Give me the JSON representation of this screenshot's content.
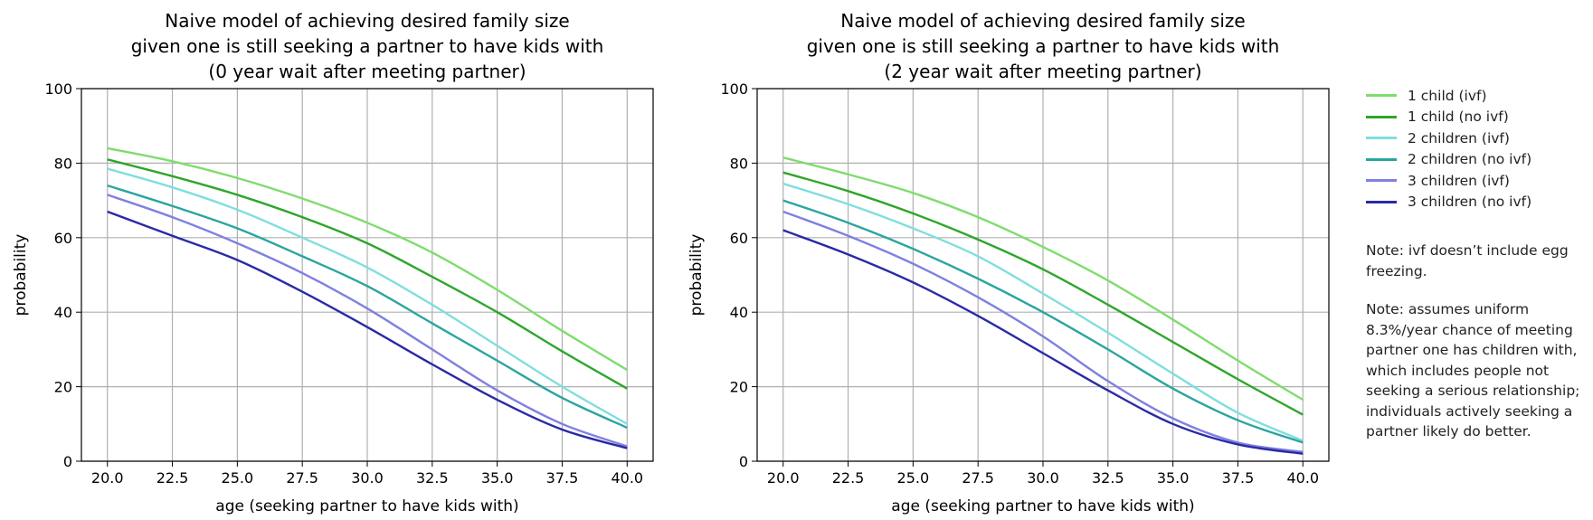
{
  "chart_data": [
    {
      "type": "line",
      "title_lines": [
        "Naive model of achieving desired family size",
        "given one is still seeking a partner to have kids with",
        "(0 year wait after meeting partner)"
      ],
      "xlabel": "age (seeking partner to have kids with)",
      "ylabel": "probability",
      "xlim": [
        19.0,
        41.0
      ],
      "ylim": [
        0,
        100
      ],
      "xticks": [
        "20.0",
        "22.5",
        "25.0",
        "27.5",
        "30.0",
        "32.5",
        "35.0",
        "37.5",
        "40.0"
      ],
      "yticks": [
        "0",
        "20",
        "40",
        "60",
        "80",
        "100"
      ],
      "grid": true,
      "x": [
        20,
        22.5,
        25,
        27.5,
        30,
        32.5,
        35,
        37.5,
        40
      ],
      "series": [
        {
          "name": "1 child (ivf)",
          "color": "#7fdc6e",
          "values": [
            84,
            80.5,
            76,
            70.5,
            64,
            56,
            46,
            35,
            24.5
          ]
        },
        {
          "name": "1 child (no ivf)",
          "color": "#2ea62a",
          "values": [
            81,
            76.5,
            71.5,
            65.5,
            58.5,
            49.5,
            40,
            29.5,
            19.5
          ]
        },
        {
          "name": "2 children (ivf)",
          "color": "#80dede",
          "values": [
            78.5,
            73.5,
            67.5,
            60,
            52,
            42,
            31,
            20,
            10
          ]
        },
        {
          "name": "2 children (no ivf)",
          "color": "#2aa5a0",
          "values": [
            74,
            68.5,
            62.5,
            55,
            47,
            37,
            27,
            17,
            9
          ]
        },
        {
          "name": "3 children (ivf)",
          "color": "#7f80e0",
          "values": [
            71.5,
            65.5,
            58.5,
            50.5,
            41,
            30,
            19,
            10,
            4
          ]
        },
        {
          "name": "3 children (no ivf)",
          "color": "#2a2aa5",
          "values": [
            67,
            60.5,
            54,
            45.5,
            36,
            26,
            16.5,
            8.5,
            3.5
          ]
        }
      ]
    },
    {
      "type": "line",
      "title_lines": [
        "Naive model of achieving desired family size",
        "given one is still seeking a partner to have kids with",
        "(2 year wait after meeting partner)"
      ],
      "xlabel": "age (seeking partner to have kids with)",
      "ylabel": "probability",
      "xlim": [
        19.0,
        41.0
      ],
      "ylim": [
        0,
        100
      ],
      "xticks": [
        "20.0",
        "22.5",
        "25.0",
        "27.5",
        "30.0",
        "32.5",
        "35.0",
        "37.5",
        "40.0"
      ],
      "yticks": [
        "0",
        "20",
        "40",
        "60",
        "80",
        "100"
      ],
      "grid": true,
      "x": [
        20,
        22.5,
        25,
        27.5,
        30,
        32.5,
        35,
        37.5,
        40
      ],
      "series": [
        {
          "name": "1 child (ivf)",
          "color": "#7fdc6e",
          "values": [
            81.5,
            77,
            72,
            65.5,
            57.5,
            48.5,
            38,
            27,
            16.5
          ]
        },
        {
          "name": "1 child (no ivf)",
          "color": "#2ea62a",
          "values": [
            77.5,
            72.5,
            66.5,
            59.5,
            51.5,
            42,
            32,
            22,
            12.5
          ]
        },
        {
          "name": "2 children (ivf)",
          "color": "#80dede",
          "values": [
            74.5,
            69,
            62.5,
            55,
            45,
            34.5,
            23.5,
            13,
            5.5
          ]
        },
        {
          "name": "2 children (no ivf)",
          "color": "#2aa5a0",
          "values": [
            70,
            64,
            57,
            49,
            40,
            30,
            19.5,
            11,
            5
          ]
        },
        {
          "name": "3 children (ivf)",
          "color": "#7f80e0",
          "values": [
            67,
            60.5,
            53,
            44,
            33.5,
            21.5,
            11.5,
            5,
            2.5
          ]
        },
        {
          "name": "3 children (no ivf)",
          "color": "#2a2aa5",
          "values": [
            62,
            55.5,
            48,
            39,
            29,
            19,
            10,
            4.5,
            2
          ]
        }
      ]
    }
  ],
  "legend_placement": "right, outside plots",
  "legend": [
    {
      "label": "1 child (ivf)",
      "color": "#7fdc6e"
    },
    {
      "label": "1 child (no ivf)",
      "color": "#2ea62a"
    },
    {
      "label": "2 children (ivf)",
      "color": "#80dede"
    },
    {
      "label": "2 children (no ivf)",
      "color": "#2aa5a0"
    },
    {
      "label": "3 children (ivf)",
      "color": "#7f80e0"
    },
    {
      "label": "3 children (no ivf)",
      "color": "#2a2aa5"
    }
  ],
  "notes": {
    "note1": "Note: ivf doesn’t include egg freezing.",
    "note2": "Note: assumes uniform 8.3%/year chance of meeting partner one has children with, which includes people not seeking a serious relationship; individuals actively seeking a partner likely do better."
  }
}
